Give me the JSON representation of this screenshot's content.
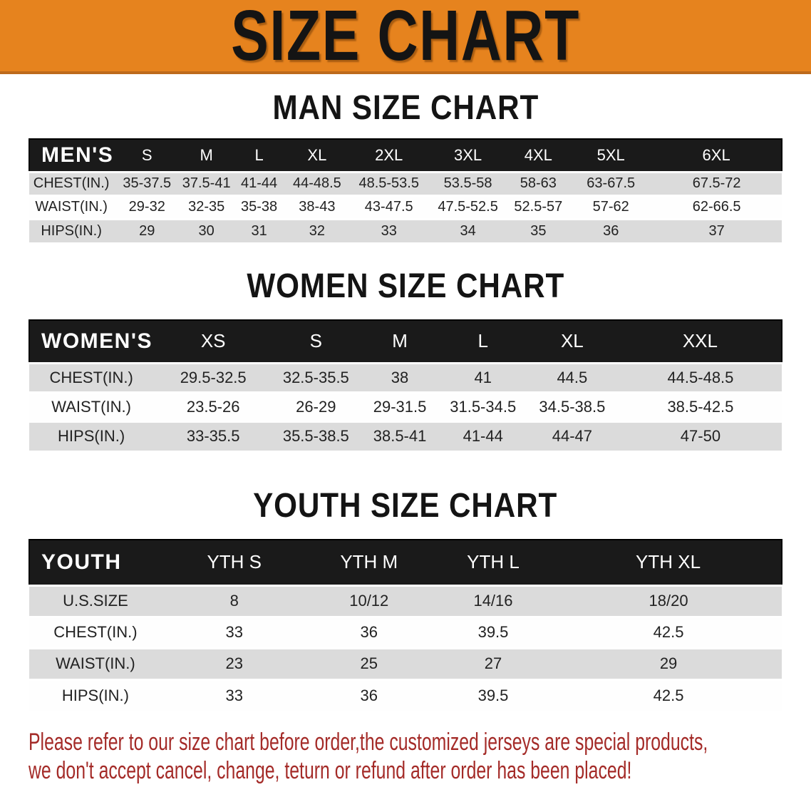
{
  "banner": {
    "title": "SIZE CHART"
  },
  "colors": {
    "banner_bg": "#E6831E",
    "banner_edge": "#BD6A1C",
    "bar_bg": "#1A1A1A",
    "bar_text": "#FFFFFF",
    "shade_row": "#DBDBDB",
    "table_text": "#222222",
    "heading_text": "#141414",
    "note_text": "#A42B28"
  },
  "sections": [
    {
      "heading": "MAN SIZE CHART",
      "table": {
        "header": [
          "MEN'S",
          "S",
          "M",
          "L",
          "XL",
          "2XL",
          "3XL",
          "4XL",
          "5XL",
          "6XL"
        ],
        "rows": [
          {
            "label": "CHEST(IN.)",
            "values": [
              "35-37.5",
              "37.5-41",
              "41-44",
              "44-48.5",
              "48.5-53.5",
              "53.5-58",
              "58-63",
              "63-67.5",
              "67.5-72"
            ]
          },
          {
            "label": "WAIST(IN.)",
            "values": [
              "29-32",
              "32-35",
              "35-38",
              "38-43",
              "43-47.5",
              "47.5-52.5",
              "52.5-57",
              "57-62",
              "62-66.5"
            ]
          },
          {
            "label": "HIPS(IN.)",
            "values": [
              "29",
              "30",
              "31",
              "32",
              "33",
              "34",
              "35",
              "36",
              "37"
            ]
          }
        ]
      }
    },
    {
      "heading": "WOMEN SIZE CHART",
      "table": {
        "header": [
          "WOMEN'S",
          "XS",
          "S",
          "M",
          "L",
          "XL",
          "XXL"
        ],
        "rows": [
          {
            "label": "CHEST(IN.)",
            "values": [
              "29.5-32.5",
              "32.5-35.5",
              "38",
              "41",
              "44.5",
              "44.5-48.5"
            ]
          },
          {
            "label": "WAIST(IN.)",
            "values": [
              "23.5-26",
              "26-29",
              "29-31.5",
              "31.5-34.5",
              "34.5-38.5",
              "38.5-42.5"
            ]
          },
          {
            "label": "HIPS(IN.)",
            "values": [
              "33-35.5",
              "35.5-38.5",
              "38.5-41",
              "41-44",
              "44-47",
              "47-50"
            ]
          }
        ]
      }
    },
    {
      "heading": "YOUTH SIZE CHART",
      "table": {
        "header": [
          "YOUTH",
          "YTH S",
          "YTH M",
          "YTH L",
          "YTH XL"
        ],
        "rows": [
          {
            "label": "U.S.SIZE",
            "values": [
              "8",
              "10/12",
              "14/16",
              "18/20"
            ]
          },
          {
            "label": "CHEST(IN.)",
            "values": [
              "33",
              "36",
              "39.5",
              "42.5"
            ]
          },
          {
            "label": "WAIST(IN.)",
            "values": [
              "23",
              "25",
              "27",
              "29"
            ]
          },
          {
            "label": "HIPS(IN.)",
            "values": [
              "33",
              "36",
              "39.5",
              "42.5"
            ]
          }
        ]
      }
    }
  ],
  "note": {
    "line1": "Please refer to our size chart before order,the customized jerseys are special products,",
    "line2": "we don't accept cancel, change, teturn or refund after order has been placed!"
  }
}
